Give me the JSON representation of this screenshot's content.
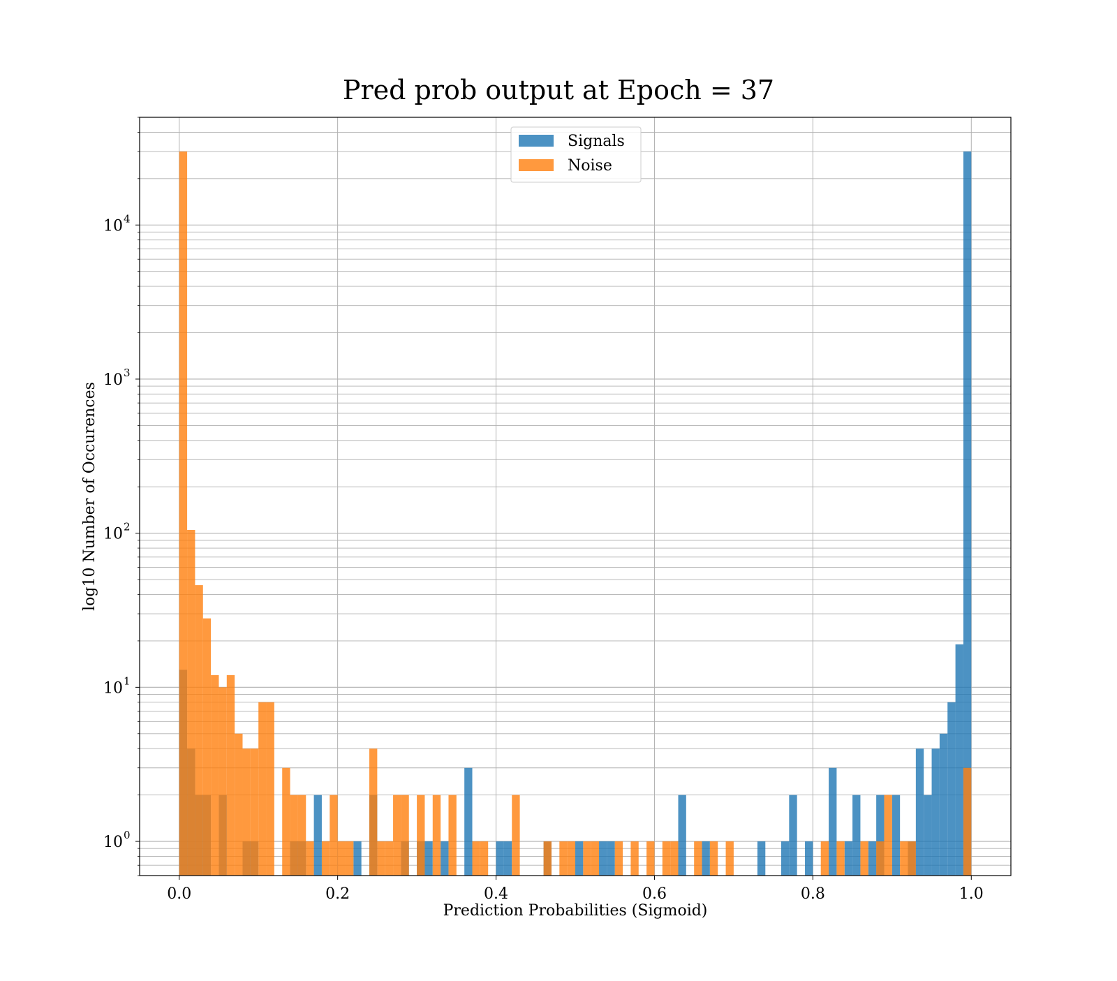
{
  "chart_data": {
    "type": "bar",
    "subtype": "overlapping histogram",
    "title": "Pred prob output at Epoch = 37",
    "xlabel": "Prediction Probabilities (Sigmoid)",
    "ylabel": "log10 Number of Occurences",
    "xlim": [
      -0.05,
      1.05
    ],
    "ylim": [
      0.6,
      50000
    ],
    "yscale": "log",
    "grid": true,
    "legend_position": "top-center",
    "bin_width": 0.01,
    "xticks": [
      "0.0",
      "0.2",
      "0.4",
      "0.6",
      "0.8",
      "1.0"
    ],
    "xtick_values": [
      0,
      0.2,
      0.4,
      0.6,
      0.8,
      1.0
    ],
    "yticks": [
      {
        "base": "10",
        "exp": "0",
        "value": 1
      },
      {
        "base": "10",
        "exp": "1",
        "value": 10
      },
      {
        "base": "10",
        "exp": "2",
        "value": 100
      },
      {
        "base": "10",
        "exp": "3",
        "value": 1000
      },
      {
        "base": "10",
        "exp": "4",
        "value": 10000
      }
    ],
    "series": [
      {
        "name": "Signals",
        "color": "#1f77b4",
        "opacity": 0.8,
        "bins": [
          [
            0.0,
            13
          ],
          [
            0.01,
            4
          ],
          [
            0.02,
            2
          ],
          [
            0.03,
            2
          ],
          [
            0.05,
            2
          ],
          [
            0.08,
            1
          ],
          [
            0.09,
            1
          ],
          [
            0.14,
            1
          ],
          [
            0.15,
            1
          ],
          [
            0.17,
            2
          ],
          [
            0.22,
            1
          ],
          [
            0.24,
            2
          ],
          [
            0.28,
            1
          ],
          [
            0.3,
            1
          ],
          [
            0.31,
            1
          ],
          [
            0.33,
            1
          ],
          [
            0.36,
            3
          ],
          [
            0.4,
            1
          ],
          [
            0.41,
            1
          ],
          [
            0.46,
            1
          ],
          [
            0.5,
            1
          ],
          [
            0.53,
            1
          ],
          [
            0.54,
            1
          ],
          [
            0.63,
            2
          ],
          [
            0.66,
            1
          ],
          [
            0.73,
            1
          ],
          [
            0.76,
            1
          ],
          [
            0.77,
            2
          ],
          [
            0.79,
            1
          ],
          [
            0.82,
            3
          ],
          [
            0.84,
            1
          ],
          [
            0.85,
            2
          ],
          [
            0.87,
            1
          ],
          [
            0.88,
            2
          ],
          [
            0.9,
            2
          ],
          [
            0.92,
            1
          ],
          [
            0.93,
            4
          ],
          [
            0.94,
            2
          ],
          [
            0.95,
            4
          ],
          [
            0.96,
            5
          ],
          [
            0.97,
            8
          ],
          [
            0.98,
            19
          ],
          [
            0.99,
            30000
          ]
        ]
      },
      {
        "name": "Noise",
        "color": "#ff7f0e",
        "opacity": 0.8,
        "bins": [
          [
            0.0,
            30000
          ],
          [
            0.01,
            105
          ],
          [
            0.02,
            46
          ],
          [
            0.03,
            28
          ],
          [
            0.04,
            12
          ],
          [
            0.05,
            10
          ],
          [
            0.06,
            12
          ],
          [
            0.07,
            5
          ],
          [
            0.08,
            4
          ],
          [
            0.09,
            4
          ],
          [
            0.1,
            8
          ],
          [
            0.11,
            8
          ],
          [
            0.13,
            3
          ],
          [
            0.14,
            2
          ],
          [
            0.15,
            2
          ],
          [
            0.16,
            1
          ],
          [
            0.18,
            1
          ],
          [
            0.19,
            2
          ],
          [
            0.2,
            1
          ],
          [
            0.21,
            1
          ],
          [
            0.24,
            4
          ],
          [
            0.25,
            1
          ],
          [
            0.26,
            1
          ],
          [
            0.27,
            2
          ],
          [
            0.28,
            2
          ],
          [
            0.3,
            2
          ],
          [
            0.32,
            2
          ],
          [
            0.34,
            2
          ],
          [
            0.37,
            1
          ],
          [
            0.38,
            1
          ],
          [
            0.42,
            2
          ],
          [
            0.46,
            1
          ],
          [
            0.48,
            1
          ],
          [
            0.49,
            1
          ],
          [
            0.51,
            1
          ],
          [
            0.52,
            1
          ],
          [
            0.55,
            1
          ],
          [
            0.57,
            1
          ],
          [
            0.59,
            1
          ],
          [
            0.61,
            1
          ],
          [
            0.62,
            1
          ],
          [
            0.65,
            1
          ],
          [
            0.67,
            1
          ],
          [
            0.69,
            1
          ],
          [
            0.81,
            1
          ],
          [
            0.83,
            1
          ],
          [
            0.86,
            1
          ],
          [
            0.88,
            1
          ],
          [
            0.89,
            2
          ],
          [
            0.91,
            1
          ],
          [
            0.92,
            1
          ],
          [
            0.99,
            3
          ]
        ]
      }
    ]
  }
}
